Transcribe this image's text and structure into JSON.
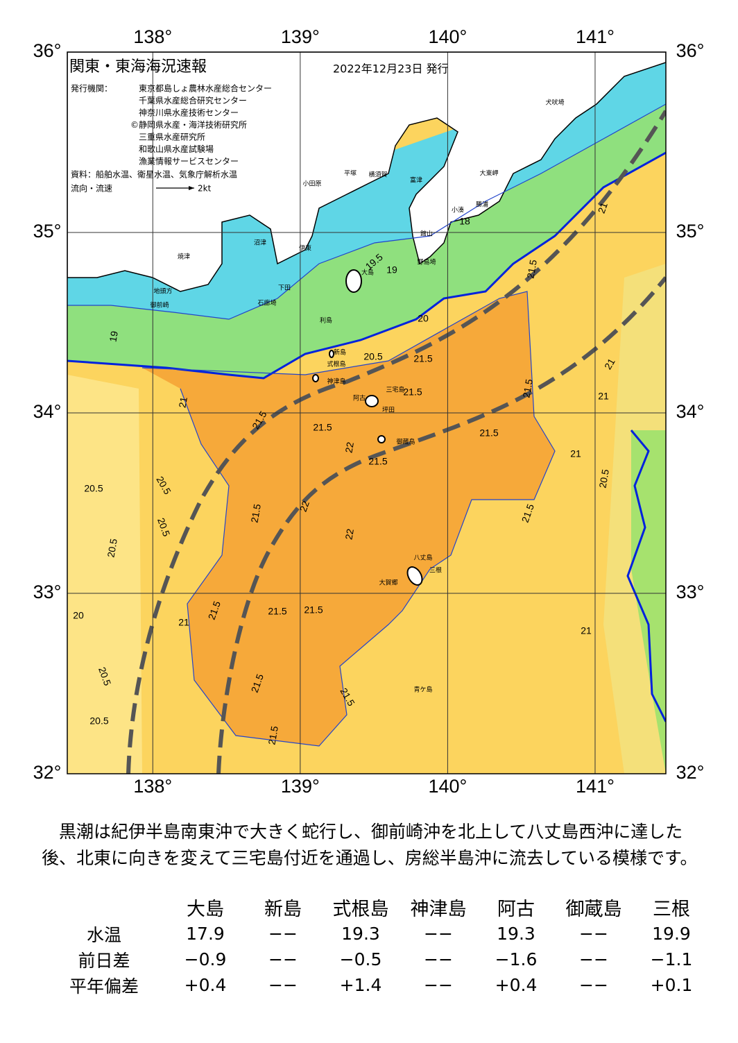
{
  "header": {
    "title": "関東・東海海況速報",
    "date": "2022年12月23日 発行",
    "issuer_label": "発行機関：",
    "issuers": [
      "東京都島しょ農林水産総合センター",
      "千葉県水産総合研究センター",
      "神奈川県水産技術センター",
      "©静岡県水産・海洋技術研究所",
      "三重県水産研究所",
      "和歌山県水産試験場",
      "漁業情報サービスセンター"
    ],
    "sources": "資料：船舶水温、衛星水温、気象庁解析水温",
    "flow_label": "流向・流速",
    "flow_unit": "2kt"
  },
  "map": {
    "xlim": [
      137.42,
      141.48
    ],
    "ylim": [
      32,
      36
    ],
    "lon_ticks": [
      {
        "value": 138,
        "label": "138°"
      },
      {
        "value": 139,
        "label": "139°"
      },
      {
        "value": 140,
        "label": "140°"
      },
      {
        "value": 141,
        "label": "141°"
      }
    ],
    "lat_ticks": [
      {
        "value": 32,
        "label": "32°"
      },
      {
        "value": 33,
        "label": "33°"
      },
      {
        "value": 34,
        "label": "34°"
      },
      {
        "value": 35,
        "label": "35°"
      },
      {
        "value": 36,
        "label": "36°"
      }
    ],
    "place_names": [
      "犬吠埼",
      "大東岬",
      "富津",
      "横須賀",
      "平塚",
      "小田原",
      "勝浦",
      "小湊",
      "館山",
      "野島埼",
      "大島",
      "沼津",
      "伊東",
      "下田",
      "石廊埼",
      "焼津",
      "地頭方",
      "御前崎",
      "利島",
      "新島",
      "式根島",
      "神津島",
      "三宅島",
      "阿古",
      "坪田",
      "御蔵島",
      "八丈島",
      "三根",
      "大賀郷",
      "青ケ島"
    ],
    "contour_labels": [
      21.5,
      21.5,
      21.5,
      21.5,
      21.5,
      21.5,
      21.5,
      21.5,
      21.5,
      21.5,
      21.5,
      21.5,
      21.5,
      21.5,
      21.5,
      21.5,
      22,
      22,
      22,
      21,
      21,
      21,
      21,
      21,
      21,
      20.5,
      20.5,
      20.5,
      20.5,
      20.5,
      20.5,
      20.5,
      20.5,
      20,
      20,
      19.5,
      19,
      18,
      19,
      21
    ]
  },
  "summary": "黒潮は紀伊半島南東沖で大きく蛇行し、御前崎沖を北上して八丈島西沖に達した後、北東に向きを変えて三宅島付近を通過し、房総半島沖に流去している模様です。",
  "table": {
    "columns": [
      "大島",
      "新島",
      "式根島",
      "神津島",
      "阿古",
      "御蔵島",
      "三根"
    ],
    "rows": [
      {
        "label": "水温",
        "values": [
          "17.9",
          "−−",
          "19.3",
          "−−",
          "19.3",
          "−−",
          "19.9"
        ]
      },
      {
        "label": "前日差",
        "values": [
          "−0.9",
          "−−",
          "−0.5",
          "−−",
          "−1.6",
          "−−",
          "−1.1"
        ]
      },
      {
        "label": "平年偏差",
        "values": [
          "+0.4",
          "−−",
          "+1.4",
          "−−",
          "+0.4",
          "−−",
          "+0.1"
        ]
      }
    ]
  }
}
